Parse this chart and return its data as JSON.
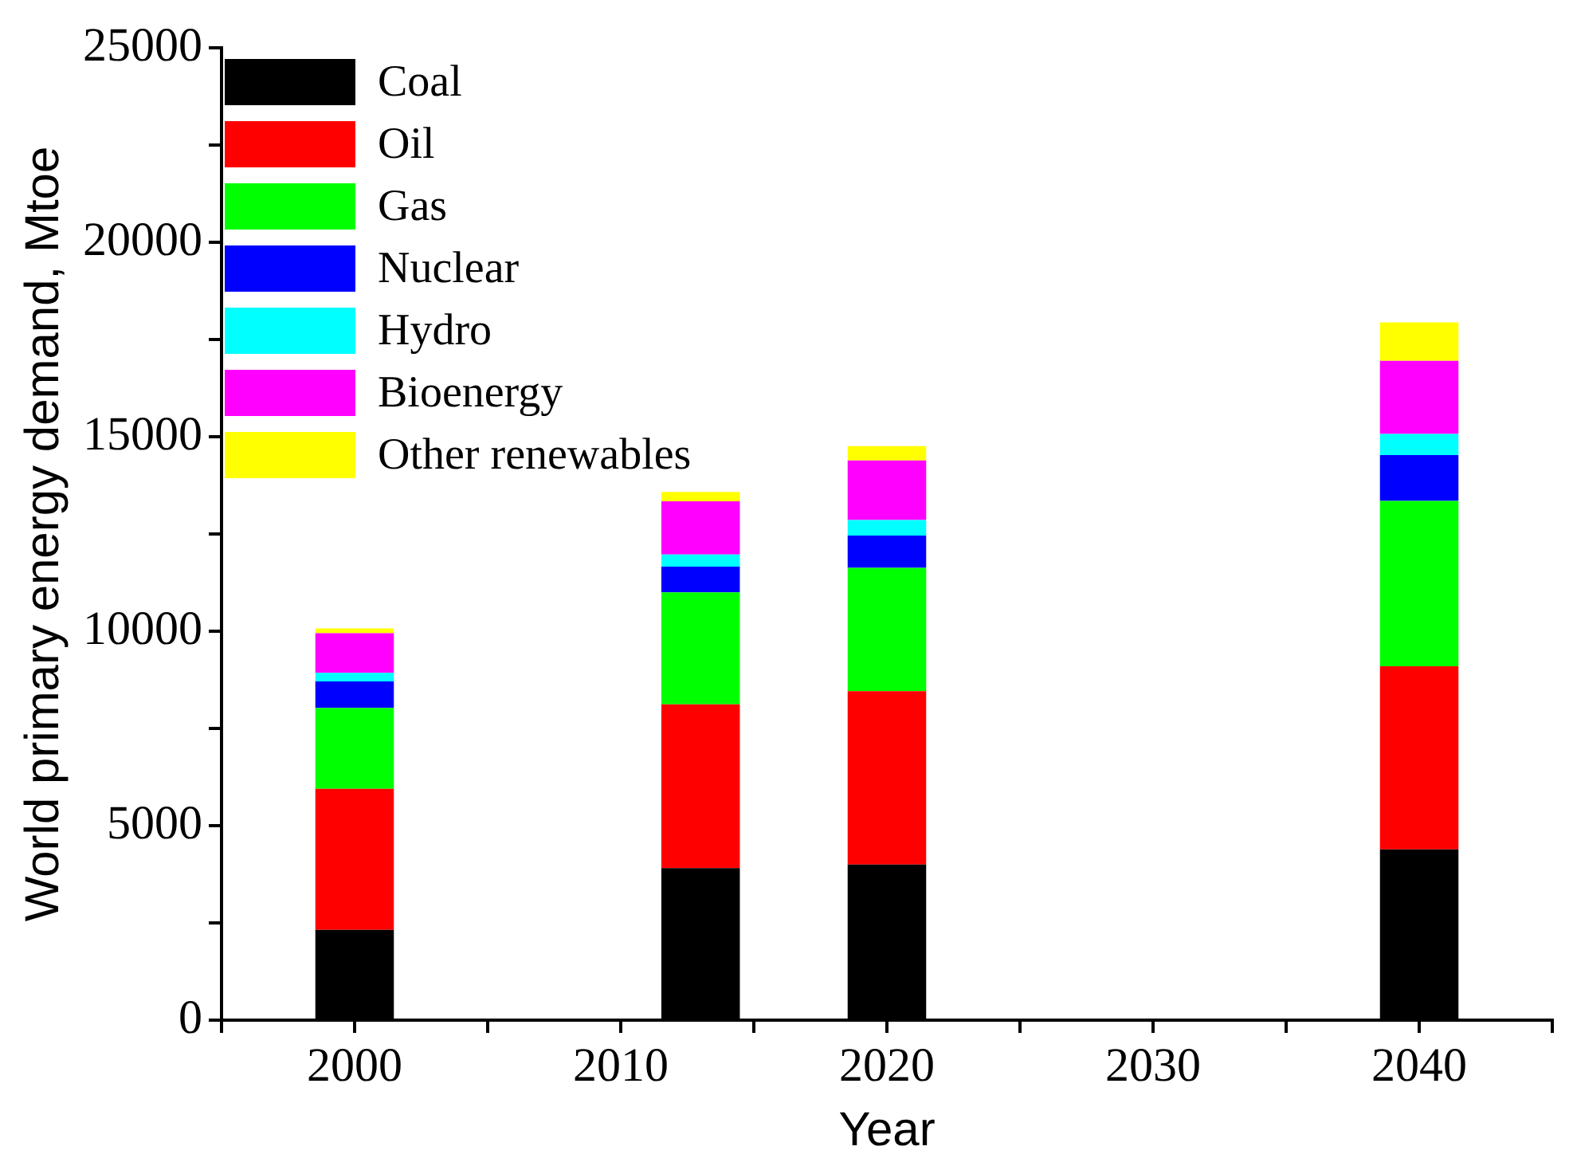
{
  "chart_data": {
    "type": "bar",
    "stacked": true,
    "xlabel": "Year",
    "ylabel": "World primary energy demand, Mtoe",
    "x": [
      2000,
      2013,
      2020,
      2040
    ],
    "xlim": [
      1995,
      2045
    ],
    "xticks": [
      {
        "value": 1995,
        "label": null
      },
      2000,
      {
        "value": 2005,
        "label": null
      },
      2010,
      {
        "value": 2015,
        "label": null
      },
      2020,
      {
        "value": 2025,
        "label": null
      },
      2030,
      {
        "value": 2035,
        "label": null
      },
      2040,
      {
        "value": 2045,
        "label": null
      }
    ],
    "ylim": [
      0,
      25000
    ],
    "yticks": [
      0,
      {
        "value": 2500,
        "label": null
      },
      5000,
      {
        "value": 7500,
        "label": null
      },
      10000,
      {
        "value": 12500,
        "label": null
      },
      15000,
      {
        "value": 17500,
        "label": null
      },
      20000,
      {
        "value": 22500,
        "label": null
      },
      25000
    ],
    "series": [
      {
        "name": "Coal",
        "color": "#000000",
        "values": [
          2320,
          3910,
          4000,
          4390
        ]
      },
      {
        "name": "Oil",
        "color": "#ff0000",
        "values": [
          3630,
          4210,
          4460,
          4710
        ]
      },
      {
        "name": "Gas",
        "color": "#00ff00",
        "values": [
          2080,
          2880,
          3170,
          4250
        ]
      },
      {
        "name": "Nuclear",
        "color": "#0000ff",
        "values": [
          680,
          660,
          830,
          1180
        ]
      },
      {
        "name": "Hydro",
        "color": "#00ffff",
        "values": [
          220,
          310,
          400,
          540
        ]
      },
      {
        "name": "Bioenergy",
        "color": "#ff00ff",
        "values": [
          1020,
          1370,
          1530,
          1880
        ]
      },
      {
        "name": "Other renewables",
        "color": "#ffff00",
        "values": [
          120,
          240,
          370,
          990
        ]
      }
    ],
    "legend": "top left",
    "grid": false
  }
}
